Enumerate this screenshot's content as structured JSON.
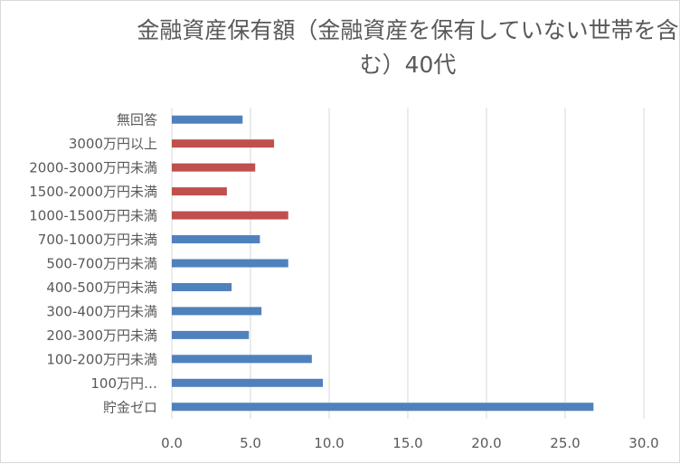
{
  "chart_data": {
    "type": "bar",
    "orientation": "horizontal",
    "title": "金融資産保有額（金融資産を保有していない世帯を含む）40代",
    "xlabel": "",
    "ylabel": "",
    "xlim": [
      0,
      30
    ],
    "x_ticks": [
      "0.0",
      "5.0",
      "10.0",
      "15.0",
      "20.0",
      "25.0",
      "30.0"
    ],
    "grid": true,
    "legend": "none",
    "colors": {
      "default": "#4f81bd",
      "highlight": "#c0504d"
    },
    "categories": [
      "無回答",
      "3000万円以上",
      "2000-3000万円未満",
      "1500-2000万円未満",
      "1000-1500万円未満",
      "700-1000万円未満",
      "500-700万円未満",
      "400-500万円未満",
      "300-400万円未満",
      "200-300万円未満",
      "100-200万円未満",
      "100万円…",
      "貯金ゼロ"
    ],
    "values": [
      4.5,
      6.5,
      5.3,
      3.5,
      7.4,
      5.6,
      7.4,
      3.8,
      5.7,
      4.9,
      8.9,
      9.6,
      26.8
    ],
    "highlighted": [
      false,
      true,
      true,
      true,
      true,
      false,
      false,
      false,
      false,
      false,
      false,
      false,
      false
    ]
  }
}
